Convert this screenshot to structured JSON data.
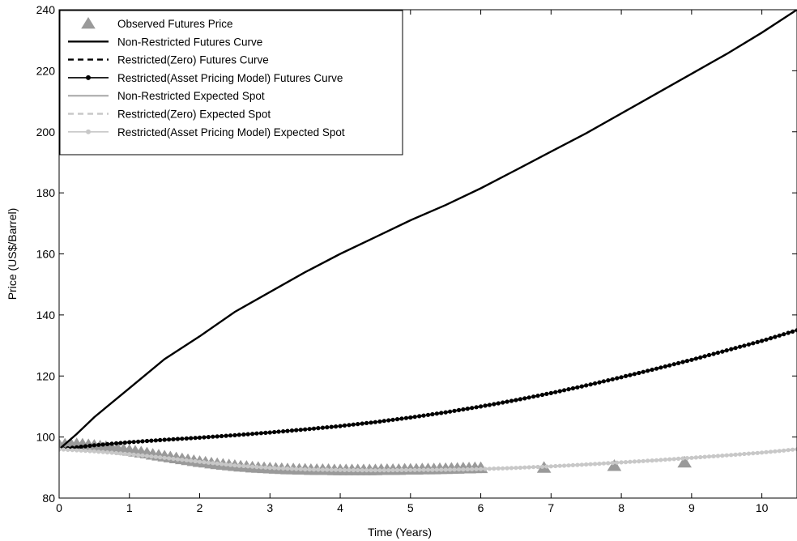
{
  "chart_data": {
    "type": "line",
    "title": "",
    "xlabel": "Time (Years)",
    "ylabel": "Price (US$/Barrel)",
    "xlim": [
      0,
      10.5
    ],
    "ylim": [
      80,
      240
    ],
    "xticks": [
      0,
      1,
      2,
      3,
      4,
      5,
      6,
      7,
      8,
      9,
      10
    ],
    "yticks": [
      80,
      100,
      120,
      140,
      160,
      180,
      200,
      220,
      240
    ],
    "grid": false,
    "legend_position": "top-left",
    "series": [
      {
        "name": "Observed Futures Price",
        "style": "markers-triangle",
        "color": "#9a9a9a",
        "x": [
          0,
          0.083,
          0.167,
          0.25,
          0.333,
          0.417,
          0.5,
          0.583,
          0.667,
          0.75,
          0.833,
          0.917,
          1.0,
          1.083,
          1.167,
          1.25,
          1.333,
          1.417,
          1.5,
          1.583,
          1.667,
          1.75,
          1.833,
          1.917,
          2.0,
          2.083,
          2.167,
          2.25,
          2.333,
          2.417,
          2.5,
          2.583,
          2.667,
          2.75,
          2.833,
          2.917,
          3.0,
          3.083,
          3.167,
          3.25,
          3.333,
          3.417,
          3.5,
          3.583,
          3.667,
          3.75,
          3.833,
          3.917,
          4.0,
          4.083,
          4.167,
          4.25,
          4.333,
          4.417,
          4.5,
          4.583,
          4.667,
          4.75,
          4.833,
          4.917,
          5.0,
          5.083,
          5.167,
          5.25,
          5.333,
          5.417,
          5.5,
          5.583,
          5.667,
          5.75,
          5.833,
          5.917,
          6.0,
          6.9,
          7.9,
          8.9
        ],
        "y": [
          97.5,
          97.6,
          97.7,
          97.7,
          97.6,
          97.4,
          97.2,
          97.0,
          96.8,
          96.5,
          96.2,
          95.9,
          95.6,
          95.3,
          95.0,
          94.7,
          94.3,
          94.0,
          93.7,
          93.4,
          93.1,
          92.8,
          92.5,
          92.2,
          91.9,
          91.7,
          91.4,
          91.2,
          91.0,
          90.8,
          90.6,
          90.4,
          90.3,
          90.1,
          90.0,
          89.9,
          89.8,
          89.7,
          89.6,
          89.5,
          89.5,
          89.4,
          89.4,
          89.3,
          89.3,
          89.3,
          89.3,
          89.2,
          89.2,
          89.2,
          89.2,
          89.2,
          89.2,
          89.2,
          89.2,
          89.3,
          89.3,
          89.3,
          89.3,
          89.4,
          89.4,
          89.4,
          89.5,
          89.5,
          89.5,
          89.6,
          89.6,
          89.7,
          89.7,
          89.8,
          89.8,
          89.9,
          89.9,
          90.0,
          90.6,
          91.7
        ]
      },
      {
        "name": "Non-Restricted Futures Curve",
        "style": "solid",
        "color": "#000000",
        "x": [
          0,
          0.25,
          0.5,
          1,
          1.5,
          2,
          2.5,
          3,
          3.5,
          4,
          4.5,
          5,
          5.5,
          6,
          6.5,
          7,
          7.5,
          8,
          8.5,
          9,
          9.5,
          10,
          10.5
        ],
        "y": [
          96,
          101,
          106.5,
          116,
          125.5,
          133,
          141,
          147.5,
          154,
          160,
          165.5,
          171,
          176,
          181.5,
          187.5,
          193.5,
          199.5,
          206,
          212.5,
          219,
          225.5,
          232.5,
          240
        ]
      },
      {
        "name": "Restricted(Zero) Futures Curve",
        "style": "dashed",
        "color": "#000000",
        "x": [
          0,
          0.5,
          1,
          1.5,
          2,
          2.5,
          3,
          3.5,
          4,
          4.5,
          5,
          5.5,
          6,
          6.5,
          7,
          7.5,
          8,
          8.5,
          9,
          9.5,
          10,
          10.5
        ],
        "y": [
          96,
          97.3,
          98.3,
          99.1,
          99.8,
          100.6,
          101.5,
          102.5,
          103.6,
          104.9,
          106.4,
          108.1,
          110,
          112.1,
          114.4,
          116.9,
          119.6,
          122.4,
          125.3,
          128.4,
          131.5,
          135
        ]
      },
      {
        "name": "Restricted(Asset Pricing Model) Futures Curve",
        "style": "solid-dots",
        "color": "#000000",
        "x": [
          0,
          0.5,
          1,
          1.5,
          2,
          2.5,
          3,
          3.5,
          4,
          4.5,
          5,
          5.5,
          6,
          6.5,
          7,
          7.5,
          8,
          8.5,
          9,
          9.5,
          10,
          10.5
        ],
        "y": [
          96,
          97.3,
          98.3,
          99.1,
          99.8,
          100.6,
          101.5,
          102.5,
          103.6,
          104.9,
          106.4,
          108.1,
          110,
          112.1,
          114.4,
          116.9,
          119.6,
          122.4,
          125.3,
          128.4,
          131.5,
          135
        ]
      },
      {
        "name": "Non-Restricted Expected Spot",
        "style": "solid",
        "color": "#b4b4b4",
        "x": [
          0,
          0.5,
          1,
          1.5,
          2,
          2.5,
          3,
          3.5,
          4,
          4.5,
          5,
          5.5,
          6,
          6.5,
          7,
          7.5,
          8,
          8.5,
          9,
          9.5,
          10,
          10.5
        ],
        "y": [
          96,
          95.3,
          94.4,
          93.2,
          91.9,
          90.7,
          89.9,
          89.4,
          89.2,
          89.1,
          89.2,
          89.3,
          89.5,
          89.9,
          90.4,
          91,
          91.7,
          92.4,
          93.2,
          94,
          94.9,
          96
        ]
      },
      {
        "name": "Restricted(Zero) Expected Spot",
        "style": "dashed",
        "color": "#c8c8c8",
        "x": [
          0,
          0.5,
          1,
          1.5,
          2,
          2.5,
          3,
          3.5,
          4,
          4.5,
          5,
          5.5,
          6,
          6.5,
          7,
          7.5,
          8,
          8.5,
          9,
          9.5,
          10,
          10.5
        ],
        "y": [
          96,
          95.3,
          94.4,
          93.2,
          91.9,
          90.7,
          89.9,
          89.4,
          89.2,
          89.1,
          89.2,
          89.3,
          89.5,
          89.9,
          90.4,
          91,
          91.7,
          92.4,
          93.2,
          94,
          94.9,
          96
        ]
      },
      {
        "name": "Restricted(Asset Pricing Model) Expected Spot",
        "style": "solid-dots",
        "color": "#c8c8c8",
        "x": [
          0,
          0.5,
          1,
          1.5,
          2,
          2.5,
          3,
          3.5,
          4,
          4.5,
          5,
          5.5,
          6,
          6.5,
          7,
          7.5,
          8,
          8.5,
          9,
          9.5,
          10,
          10.5
        ],
        "y": [
          96,
          95.3,
          94.4,
          93.2,
          91.9,
          90.7,
          89.9,
          89.4,
          89.2,
          89.1,
          89.2,
          89.3,
          89.5,
          89.9,
          90.4,
          91,
          91.7,
          92.4,
          93.2,
          94,
          94.9,
          96
        ]
      }
    ]
  }
}
